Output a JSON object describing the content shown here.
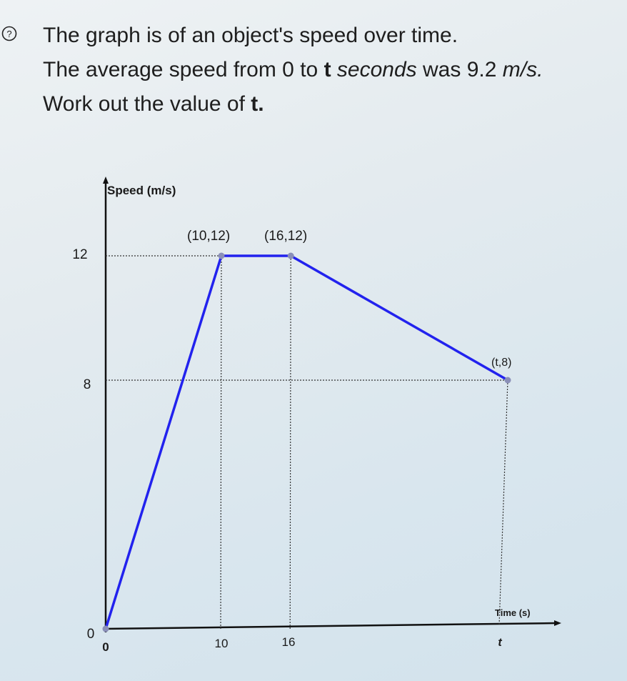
{
  "question": {
    "line1": "The graph is of an object's speed over time.",
    "line2_prefix": "The average speed from 0 to",
    "line2_var": "t",
    "line2_mid": "seconds",
    "line2_suffix": "was 9.2",
    "line2_unit": "m/s.",
    "line3_prefix": "Work out the value of",
    "line3_var": "t."
  },
  "icons": {
    "help": "question-circle-icon"
  },
  "chart_data": {
    "type": "line",
    "ylabel": "Speed (m/s)",
    "xlabel": "Time (s)",
    "points": [
      {
        "x": 0,
        "y": 0
      },
      {
        "x": 10,
        "y": 12
      },
      {
        "x": 16,
        "y": 12
      },
      {
        "x": "t",
        "y": 8
      }
    ],
    "point_labels": [
      "(10,12)",
      "(16,12)",
      "(t,8)"
    ],
    "y_ticks": [
      "0",
      "8",
      "12"
    ],
    "x_ticks": [
      "0",
      "10",
      "16",
      "t"
    ],
    "line_color": "#2222ee",
    "grid": false
  }
}
